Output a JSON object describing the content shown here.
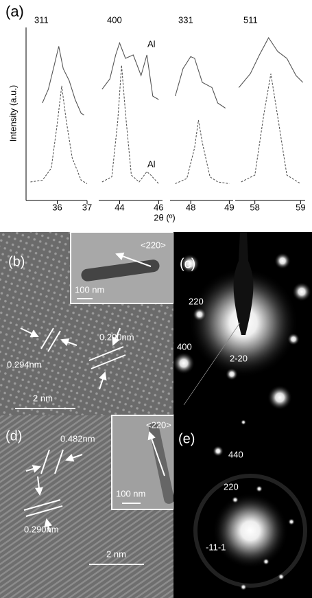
{
  "figure": {
    "panel_label": "(a)",
    "ylabel": "Intensity (a.u.)",
    "xlabel": "2θ (º)"
  },
  "chart_data": [
    {
      "type": "line",
      "title": "311",
      "xlim": [
        35,
        37
      ],
      "xticks": [
        36,
        37
      ],
      "ylim": [
        0,
        100
      ],
      "series": [
        {
          "color": "#555555",
          "linestyle": "solid",
          "x": [
            35.5,
            35.7,
            35.9,
            36.05,
            36.2,
            36.4,
            36.6,
            36.8,
            36.9
          ],
          "values": [
            56,
            64,
            78,
            89,
            76,
            69,
            58,
            50,
            49
          ]
        },
        {
          "color": "#555555",
          "linestyle": "dashed",
          "x": [
            35.1,
            35.5,
            35.8,
            36.0,
            36.15,
            36.3,
            36.5,
            36.8,
            37.0
          ],
          "values": [
            10,
            11,
            18,
            44,
            66,
            46,
            24,
            11,
            9
          ]
        }
      ]
    },
    {
      "type": "line",
      "title": "400",
      "xlim": [
        43,
        46.2
      ],
      "xticks": [
        44,
        46
      ],
      "ylim": [
        0,
        100
      ],
      "annotations": [
        "Al",
        "Al"
      ],
      "series": [
        {
          "color": "#555555",
          "linestyle": "solid",
          "x": [
            43.1,
            43.5,
            43.8,
            44.0,
            44.3,
            44.7,
            45.1,
            45.4,
            45.7,
            46.0
          ],
          "values": [
            64,
            70,
            84,
            91,
            82,
            84,
            72,
            84,
            60,
            58
          ]
        },
        {
          "color": "#555555",
          "linestyle": "dashed",
          "x": [
            43.1,
            43.6,
            43.9,
            44.1,
            44.3,
            44.6,
            45.0,
            45.4,
            45.6,
            46.0
          ],
          "values": [
            10,
            13,
            45,
            78,
            50,
            14,
            10,
            16,
            14,
            9
          ]
        }
      ]
    },
    {
      "type": "line",
      "title": "331",
      "xlim": [
        47.5,
        49.1
      ],
      "xticks": [
        48,
        49
      ],
      "ylim": [
        0,
        100
      ],
      "series": [
        {
          "color": "#555555",
          "linestyle": "solid",
          "x": [
            47.6,
            47.8,
            48.0,
            48.1,
            48.3,
            48.55,
            48.7,
            48.9
          ],
          "values": [
            60,
            76,
            83,
            82,
            68,
            65,
            56,
            53
          ]
        },
        {
          "color": "#555555",
          "linestyle": "dashed",
          "x": [
            47.6,
            47.9,
            48.1,
            48.2,
            48.3,
            48.5,
            48.7,
            49.0
          ],
          "values": [
            9,
            12,
            30,
            46,
            33,
            13,
            10,
            9
          ]
        }
      ]
    },
    {
      "type": "line",
      "title": "511",
      "xlim": [
        57.6,
        59.1
      ],
      "xticks": [
        58,
        59
      ],
      "ylim": [
        0,
        100
      ],
      "series": [
        {
          "color": "#555555",
          "linestyle": "solid",
          "x": [
            57.65,
            57.9,
            58.1,
            58.3,
            58.5,
            58.7,
            58.9,
            59.05
          ],
          "values": [
            65,
            73,
            84,
            94,
            86,
            82,
            72,
            68
          ]
        },
        {
          "color": "#555555",
          "linestyle": "dashed",
          "x": [
            57.7,
            58.0,
            58.2,
            58.35,
            58.5,
            58.7,
            59.0
          ],
          "values": [
            10,
            14,
            50,
            73,
            48,
            14,
            9
          ]
        }
      ]
    }
  ],
  "panels": [
    {
      "label": "(b)",
      "direction": "<220>",
      "inset_scale": "100 nm",
      "spacing_1": "0.294nm",
      "spacing_2": "0.290nm",
      "scale": "2 nm"
    },
    {
      "label": "(c)",
      "spots": [
        "220",
        "400",
        "2-20"
      ]
    },
    {
      "label": "(d)",
      "direction": "<220>",
      "inset_scale": "100 nm",
      "spacing_1": "0.482nm",
      "spacing_2": "0.290nm",
      "scale": "2 nm"
    },
    {
      "label": "(e)",
      "spots": [
        "440",
        "220",
        "-11-1"
      ]
    }
  ]
}
